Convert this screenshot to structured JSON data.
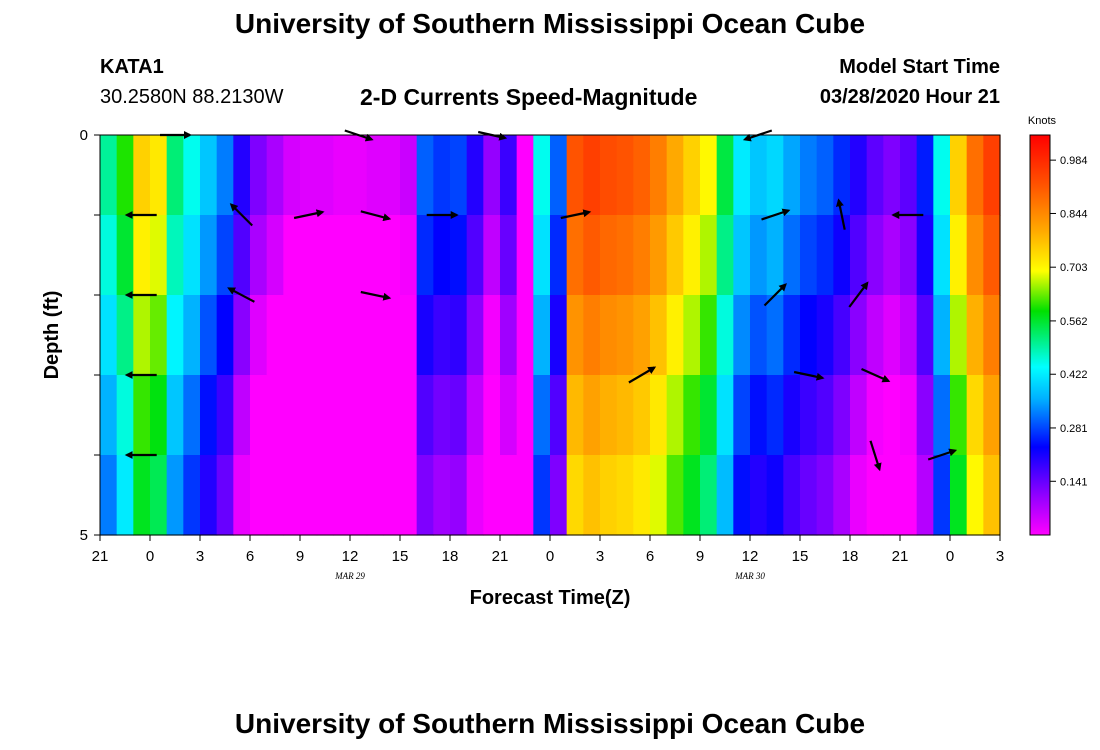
{
  "page": {
    "title": "University of Southern Mississippi Ocean Cube",
    "footer_title": "University of Southern Mississippi Ocean Cube",
    "station_id": "KATA1",
    "coords": "30.2580N 88.2130W",
    "plot_title": "2-D Currents Speed-Magnitude",
    "model_label": "Model Start Time",
    "model_time": "03/28/2020 Hour 21"
  },
  "chart_data": {
    "type": "heatmap",
    "title": "2-D Currents Speed-Magnitude",
    "xlabel": "Forecast Time(Z)",
    "ylabel": "Depth (ft)",
    "x_ticks": [
      "21",
      "0",
      "3",
      "6",
      "9",
      "12",
      "15",
      "18",
      "21",
      "0",
      "3",
      "6",
      "9",
      "12",
      "15",
      "18",
      "21",
      "0",
      "3"
    ],
    "date_labels": [
      {
        "text": "MAR 29",
        "tick_index": 5
      },
      {
        "text": "MAR 30",
        "tick_index": 13
      }
    ],
    "y_ticks": [
      "0",
      "5"
    ],
    "ylim": [
      0,
      5
    ],
    "colorbar": {
      "unit": "Knots",
      "labels": [
        "0.984",
        "0.844",
        "0.703",
        "0.562",
        "0.422",
        "0.281",
        "0.141"
      ],
      "min": 0.0,
      "max": 1.05
    },
    "x_steps": 54,
    "depth_layers": 5,
    "speed_knots_top_layer": [
      0.5,
      0.6,
      0.75,
      0.72,
      0.52,
      0.45,
      0.38,
      0.32,
      0.2,
      0.12,
      0.08,
      0.04,
      0.03,
      0.03,
      0.02,
      0.02,
      0.03,
      0.03,
      0.05,
      0.3,
      0.27,
      0.28,
      0.2,
      0.1,
      0.18,
      0.0,
      0.45,
      0.3,
      0.92,
      0.95,
      0.93,
      0.92,
      0.9,
      0.86,
      0.8,
      0.75,
      0.7,
      0.55,
      0.42,
      0.38,
      0.4,
      0.35,
      0.32,
      0.3,
      0.26,
      0.2,
      0.15,
      0.12,
      0.15,
      0.25,
      0.45,
      0.75,
      0.88,
      0.95
    ],
    "speed_knots_by_layer_offset": [
      0.0,
      -0.04,
      -0.09,
      -0.14,
      -0.18
    ],
    "arrows": [
      {
        "time_step": 4,
        "depth_ft": 0.0,
        "dx": 1.0,
        "dy": 0.0
      },
      {
        "time_step": 15,
        "depth_ft": 0.0,
        "dx": 0.9,
        "dy": 0.3
      },
      {
        "time_step": 23,
        "depth_ft": 0.0,
        "dx": 0.9,
        "dy": 0.2
      },
      {
        "time_step": 39,
        "depth_ft": 0.0,
        "dx": -0.9,
        "dy": 0.3
      },
      {
        "time_step": 2,
        "depth_ft": 1.0,
        "dx": -1.0,
        "dy": 0.0
      },
      {
        "time_step": 8,
        "depth_ft": 1.0,
        "dx": -0.7,
        "dy": -0.7
      },
      {
        "time_step": 12,
        "depth_ft": 1.0,
        "dx": 0.95,
        "dy": -0.2
      },
      {
        "time_step": 16,
        "depth_ft": 1.0,
        "dx": 0.95,
        "dy": 0.25
      },
      {
        "time_step": 20,
        "depth_ft": 1.0,
        "dx": 1.0,
        "dy": 0.0
      },
      {
        "time_step": 28,
        "depth_ft": 1.0,
        "dx": 0.95,
        "dy": -0.2
      },
      {
        "time_step": 40,
        "depth_ft": 1.0,
        "dx": 0.9,
        "dy": -0.3
      },
      {
        "time_step": 44,
        "depth_ft": 1.0,
        "dx": -0.2,
        "dy": -0.98
      },
      {
        "time_step": 48,
        "depth_ft": 1.0,
        "dx": -1.0,
        "dy": 0.0
      },
      {
        "time_step": 2,
        "depth_ft": 2.0,
        "dx": -1.0,
        "dy": 0.0
      },
      {
        "time_step": 8,
        "depth_ft": 2.0,
        "dx": -0.85,
        "dy": -0.45
      },
      {
        "time_step": 16,
        "depth_ft": 2.0,
        "dx": 0.95,
        "dy": 0.2
      },
      {
        "time_step": 40,
        "depth_ft": 2.0,
        "dx": 0.7,
        "dy": -0.7
      },
      {
        "time_step": 45,
        "depth_ft": 2.0,
        "dx": 0.6,
        "dy": -0.8
      },
      {
        "time_step": 2,
        "depth_ft": 3.0,
        "dx": -1.0,
        "dy": 0.0
      },
      {
        "time_step": 32,
        "depth_ft": 3.0,
        "dx": 0.85,
        "dy": -0.5
      },
      {
        "time_step": 42,
        "depth_ft": 3.0,
        "dx": 0.95,
        "dy": 0.2
      },
      {
        "time_step": 46,
        "depth_ft": 3.0,
        "dx": 0.9,
        "dy": 0.4
      },
      {
        "time_step": 2,
        "depth_ft": 4.0,
        "dx": -1.0,
        "dy": 0.0
      },
      {
        "time_step": 46,
        "depth_ft": 4.0,
        "dx": 0.3,
        "dy": 0.95
      },
      {
        "time_step": 50,
        "depth_ft": 4.0,
        "dx": 0.9,
        "dy": -0.3
      }
    ]
  }
}
